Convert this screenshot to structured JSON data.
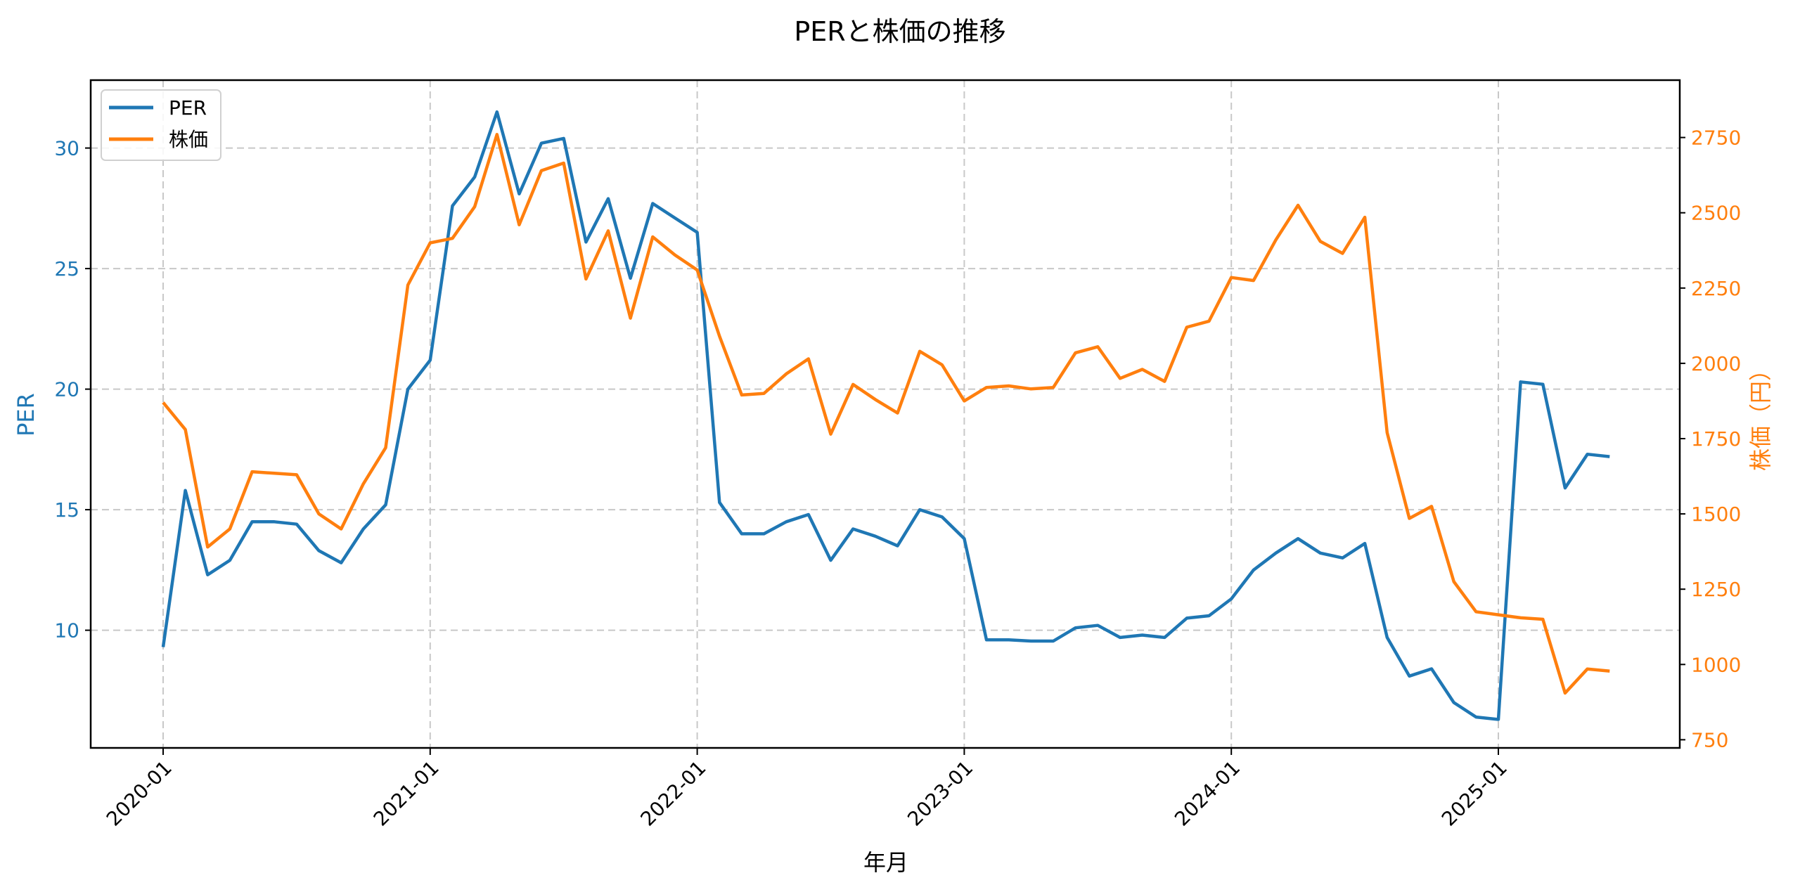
{
  "title": "PERと株価の推移",
  "colors": {
    "per": "#1f77b4",
    "price": "#ff7f0e",
    "grid": "#c8c8c8",
    "frame": "#000000"
  },
  "legend": {
    "items": [
      {
        "label": "PER",
        "color": "#1f77b4"
      },
      {
        "label": "株価",
        "color": "#ff7f0e"
      }
    ]
  },
  "chart_data": {
    "type": "line",
    "title": "PERと株価の推移",
    "xlabel": "年月",
    "ylabel": "PER",
    "ylabel_right": "株価（円）",
    "x_ticks": [
      "2020-01",
      "2021-01",
      "2022-01",
      "2023-01",
      "2024-01",
      "2025-01"
    ],
    "y_ticks_left": [
      10,
      15,
      20,
      25,
      30
    ],
    "y_ticks_right": [
      750,
      1000,
      1250,
      1500,
      1750,
      2000,
      2250,
      2500,
      2750
    ],
    "ylim_left": [
      5.0,
      32.8
    ],
    "ylim_right": [
      730,
      2935
    ],
    "grid": true,
    "legend_position": "upper left",
    "x": [
      "2020-01",
      "2020-02",
      "2020-03",
      "2020-04",
      "2020-05",
      "2020-06",
      "2020-07",
      "2020-08",
      "2020-09",
      "2020-10",
      "2020-11",
      "2020-12",
      "2021-01",
      "2021-02",
      "2021-03",
      "2021-04",
      "2021-05",
      "2021-06",
      "2021-07",
      "2021-08",
      "2021-09",
      "2021-10",
      "2021-11",
      "2021-12",
      "2022-01",
      "2022-02",
      "2022-03",
      "2022-04",
      "2022-05",
      "2022-06",
      "2022-07",
      "2022-08",
      "2022-09",
      "2022-10",
      "2022-11",
      "2022-12",
      "2023-01",
      "2023-02",
      "2023-03",
      "2023-04",
      "2023-05",
      "2023-06",
      "2023-07",
      "2023-08",
      "2023-09",
      "2023-10",
      "2023-11",
      "2023-12",
      "2024-01",
      "2024-02",
      "2024-03",
      "2024-04",
      "2024-05",
      "2024-06",
      "2024-07",
      "2024-08",
      "2024-09",
      "2024-10",
      "2024-11",
      "2024-12",
      "2025-01",
      "2025-02",
      "2025-03",
      "2025-04",
      "2025-05",
      "2025-06"
    ],
    "series": [
      {
        "name": "PER",
        "axis": "left",
        "color": "#1f77b4",
        "values": [
          9.3,
          15.8,
          12.3,
          12.9,
          14.5,
          14.5,
          14.4,
          13.3,
          12.8,
          14.2,
          15.2,
          20.0,
          21.2,
          27.6,
          28.8,
          31.5,
          28.1,
          30.2,
          30.4,
          26.1,
          27.9,
          24.6,
          27.7,
          27.1,
          26.5,
          15.3,
          14.0,
          14.0,
          14.5,
          14.8,
          12.9,
          14.2,
          13.9,
          13.5,
          15.0,
          14.7,
          13.8,
          9.6,
          9.6,
          9.55,
          9.55,
          10.1,
          10.2,
          9.7,
          9.8,
          9.7,
          10.5,
          10.6,
          11.3,
          12.5,
          13.2,
          13.8,
          13.2,
          13.0,
          13.6,
          9.7,
          8.1,
          8.4,
          7.0,
          6.4,
          6.3,
          20.3,
          20.2,
          15.9,
          17.3,
          17.2
        ]
      },
      {
        "name": "株価",
        "axis": "right",
        "color": "#ff7f0e",
        "values": [
          1870,
          1780,
          1390,
          1450,
          1640,
          1635,
          1630,
          1500,
          1450,
          1600,
          1720,
          2260,
          2400,
          2415,
          2520,
          2760,
          2460,
          2640,
          2665,
          2280,
          2440,
          2150,
          2420,
          2360,
          2310,
          2090,
          1895,
          1900,
          1965,
          2015,
          1765,
          1930,
          1880,
          1835,
          2040,
          1995,
          1875,
          1920,
          1925,
          1915,
          1920,
          2035,
          2055,
          1950,
          1980,
          1940,
          2120,
          2140,
          2285,
          2275,
          2410,
          2525,
          2405,
          2365,
          2485,
          1770,
          1485,
          1525,
          1275,
          1175,
          1165,
          1155,
          1150,
          905,
          985,
          978
        ]
      }
    ]
  }
}
